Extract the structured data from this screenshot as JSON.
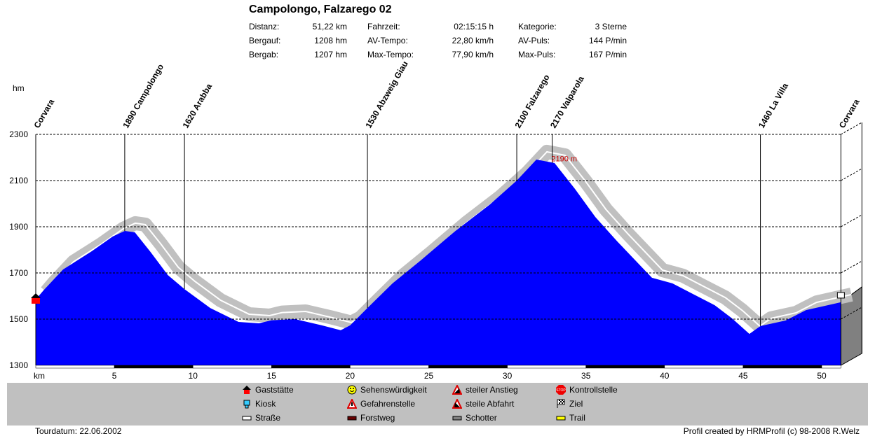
{
  "header": {
    "title": "Campolongo, Falzarego 02",
    "stats": [
      {
        "label": "Distanz:",
        "value": "51,22 km"
      },
      {
        "label": "Bergauf:",
        "value": "1208 hm"
      },
      {
        "label": "Bergab:",
        "value": "1207 hm"
      },
      {
        "label": "Fahrzeit:",
        "value": "02:15:15 h"
      },
      {
        "label": "AV-Tempo:",
        "value": "22,80 km/h"
      },
      {
        "label": "Max-Tempo:",
        "value": "77,90 km/h"
      },
      {
        "label": "Kategorie:",
        "value": "3 Sterne"
      },
      {
        "label": "AV-Puls:",
        "value": "144 P/min"
      },
      {
        "label": "Max-Puls:",
        "value": "167 P/min"
      }
    ]
  },
  "chart_data": {
    "type": "area",
    "title": "Campolongo, Falzarego 02",
    "xlabel": "km",
    "ylabel": "hm",
    "xlim": [
      0,
      51.22
    ],
    "ylim": [
      1300,
      2300
    ],
    "xticks": [
      5,
      10,
      15,
      20,
      25,
      30,
      35,
      40,
      45,
      50
    ],
    "yticks": [
      1300,
      1500,
      1700,
      1900,
      2100,
      2300
    ],
    "grid": "dashed horizontal",
    "colors": {
      "profile": "#0000ff",
      "road": "#c0c0c0",
      "grid": "#000000",
      "annotation": "#cc0000"
    },
    "profile": [
      [
        0,
        1585
      ],
      [
        0.5,
        1625
      ],
      [
        1.74,
        1715
      ],
      [
        3.5,
        1791
      ],
      [
        4.9,
        1858
      ],
      [
        5.66,
        1882
      ],
      [
        6.3,
        1876
      ],
      [
        7.3,
        1791
      ],
      [
        8.4,
        1691
      ],
      [
        9.46,
        1630
      ],
      [
        11.1,
        1548
      ],
      [
        12.9,
        1488
      ],
      [
        14.2,
        1482
      ],
      [
        15,
        1495
      ],
      [
        16.5,
        1500
      ],
      [
        18.2,
        1473
      ],
      [
        19.4,
        1452
      ],
      [
        20,
        1473
      ],
      [
        21.1,
        1548
      ],
      [
        22.7,
        1655
      ],
      [
        24.5,
        1755
      ],
      [
        26.7,
        1882
      ],
      [
        28.9,
        1997
      ],
      [
        30.6,
        2100
      ],
      [
        31.85,
        2191
      ],
      [
        33,
        2176
      ],
      [
        34.3,
        2064
      ],
      [
        35.6,
        1942
      ],
      [
        37,
        1836
      ],
      [
        39.2,
        1679
      ],
      [
        40.5,
        1655
      ],
      [
        41.8,
        1609
      ],
      [
        43.2,
        1560
      ],
      [
        44.3,
        1503
      ],
      [
        45.4,
        1436
      ],
      [
        46.1,
        1470
      ],
      [
        47.7,
        1494
      ],
      [
        49,
        1539
      ],
      [
        51.22,
        1573
      ]
    ],
    "waypoints": [
      {
        "km": 0,
        "label": "Corvara"
      },
      {
        "km": 5.66,
        "label": "1890  Campolongo"
      },
      {
        "km": 9.46,
        "label": "1620  Arabba"
      },
      {
        "km": 21.1,
        "label": "1530  Abzweig Giau"
      },
      {
        "km": 30.6,
        "label": "2100  Falzarego"
      },
      {
        "km": 32.85,
        "label": "2170  Valparola"
      },
      {
        "km": 46.1,
        "label": "1460  La Villa"
      },
      {
        "km": 51.22,
        "label": "Corvara"
      }
    ],
    "annotations": [
      {
        "km": 32.8,
        "elev": 2190,
        "text": "2190 m"
      }
    ],
    "surface_segments": [
      [
        0,
        5,
        "white"
      ],
      [
        5,
        10,
        "black"
      ],
      [
        10,
        15,
        "white"
      ],
      [
        15,
        20,
        "black"
      ],
      [
        20,
        25,
        "white"
      ],
      [
        25,
        30,
        "black"
      ],
      [
        30,
        35,
        "white"
      ],
      [
        35,
        40,
        "black"
      ],
      [
        40,
        45,
        "white"
      ],
      [
        45,
        50,
        "black"
      ],
      [
        50,
        51.22,
        "white"
      ]
    ]
  },
  "legend": [
    {
      "label": "Gaststätte",
      "icon": "house-icon"
    },
    {
      "label": "Kiosk",
      "icon": "kiosk-icon"
    },
    {
      "label": "Straße",
      "icon": "road-icon"
    },
    {
      "label": "Sehenswürdigkeit",
      "icon": "smiley-icon"
    },
    {
      "label": "Gefahrenstelle",
      "icon": "warning-icon"
    },
    {
      "label": "Forstweg",
      "icon": "forest-road-icon"
    },
    {
      "label": "steiler Anstieg",
      "icon": "steep-climb-icon"
    },
    {
      "label": "steile Abfahrt",
      "icon": "steep-descent-icon"
    },
    {
      "label": "Schotter",
      "icon": "gravel-icon"
    },
    {
      "label": "Kontrollstelle",
      "icon": "stop-icon"
    },
    {
      "label": "Ziel",
      "icon": "finish-flag-icon"
    },
    {
      "label": "Trail",
      "icon": "trail-icon"
    }
  ],
  "footer": {
    "date": "Tourdatum: 22.06.2002",
    "credit": "Profil created by HRMProfil (c) 98-2008 R.Welz"
  }
}
